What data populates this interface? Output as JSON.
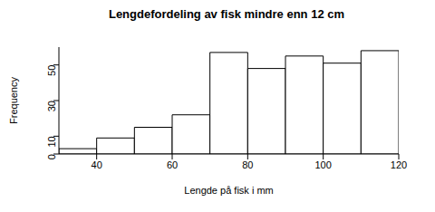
{
  "chart_data": {
    "type": "histogram",
    "title": "Lengdefordeling av fisk mindre enn 12 cm",
    "x_label": "Lengde på fisk i mm",
    "y_label": "Frequency",
    "bins": [
      30,
      40,
      50,
      60,
      70,
      80,
      90,
      100,
      110,
      120
    ],
    "values": [
      3,
      9,
      15,
      22,
      57,
      48,
      55,
      51,
      58
    ],
    "xlim": [
      30,
      120
    ],
    "xticks": [
      40,
      60,
      80,
      100,
      120
    ],
    "ylim": [
      0,
      60
    ],
    "yticks": [
      0,
      10,
      30,
      50
    ],
    "grid": false,
    "color": "#ffffff"
  }
}
